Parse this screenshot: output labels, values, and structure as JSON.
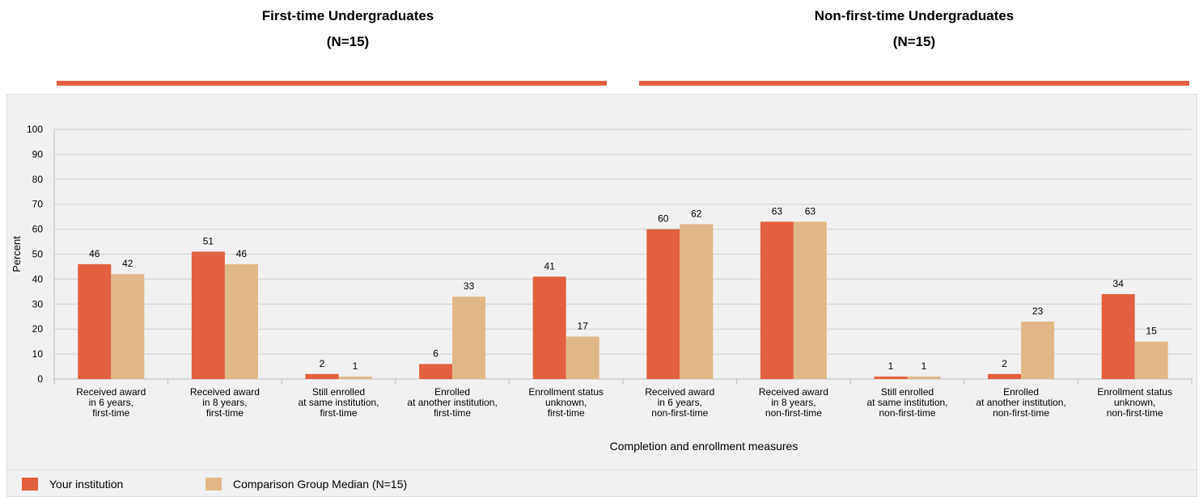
{
  "group_titles": [
    {
      "title": "First-time Undergraduates",
      "n": "(N=15)"
    },
    {
      "title": "Non-first-time Undergraduates",
      "n": "(N=15)"
    }
  ],
  "colors": {
    "your_institution": "#e0603f",
    "comparison": "#e0b887",
    "rule": "#e0603f"
  },
  "legend": {
    "your_institution": "Your institution",
    "comparison": "Comparison Group Median (N=15)"
  },
  "chart_data": {
    "type": "bar",
    "ylabel": "Percent",
    "xlabel": "Completion and enrollment measures",
    "ylim": [
      0,
      100
    ],
    "yticks": [
      0,
      10,
      20,
      30,
      40,
      50,
      60,
      70,
      80,
      90,
      100
    ],
    "grid": true,
    "legend_position": "bottom",
    "categories": [
      [
        "Received award",
        "in 6 years,",
        "first-time"
      ],
      [
        "Received award",
        "in 8 years,",
        "first-time"
      ],
      [
        "Still enrolled",
        "at same institution,",
        "first-time"
      ],
      [
        "Enrolled",
        "at another institution,",
        "first-time"
      ],
      [
        "Enrollment status",
        "unknown,",
        "first-time"
      ],
      [
        "Received award",
        "in 6 years,",
        "non-first-time"
      ],
      [
        "Received award",
        "in 8 years,",
        "non-first-time"
      ],
      [
        "Still enrolled",
        "at same institution,",
        "non-first-time"
      ],
      [
        "Enrolled",
        "at another institution,",
        "non-first-time"
      ],
      [
        "Enrollment status",
        "unknown,",
        "non-first-time"
      ]
    ],
    "series": [
      {
        "name": "Your institution",
        "values": [
          46,
          51,
          2,
          6,
          41,
          60,
          63,
          1,
          2,
          34
        ]
      },
      {
        "name": "Comparison Group Median (N=15)",
        "values": [
          42,
          46,
          1,
          33,
          17,
          62,
          63,
          1,
          23,
          15
        ]
      }
    ]
  }
}
